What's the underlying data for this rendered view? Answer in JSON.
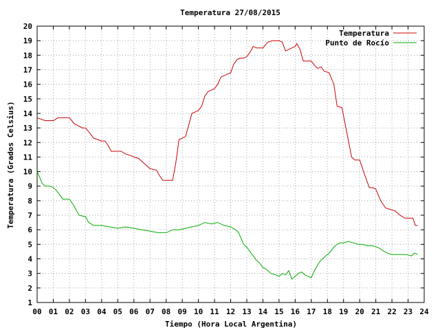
{
  "chart_data": {
    "type": "line",
    "title": "Temperatura 27/08/2015",
    "xlabel": "Tiempo (Hora Local Argentina)",
    "ylabel": "Temperatura (Grados Celsius)",
    "xlim": [
      0,
      24
    ],
    "ylim": [
      1,
      20
    ],
    "x_ticks": [
      "00",
      "01",
      "02",
      "03",
      "04",
      "05",
      "06",
      "07",
      "08",
      "09",
      "10",
      "11",
      "12",
      "13",
      "14",
      "15",
      "16",
      "17",
      "18",
      "19",
      "20",
      "21",
      "22",
      "23",
      "24"
    ],
    "y_ticks": [
      "1",
      "2",
      "3",
      "4",
      "5",
      "6",
      "7",
      "8",
      "9",
      "10",
      "11",
      "12",
      "13",
      "14",
      "15",
      "16",
      "17",
      "18",
      "19",
      "20"
    ],
    "grid": true,
    "legend_position": "top-right",
    "series": [
      {
        "name": "Temperatura",
        "color": "#cc0000",
        "points": [
          [
            0.0,
            13.7
          ],
          [
            0.5,
            13.5
          ],
          [
            1.0,
            13.5
          ],
          [
            1.3,
            13.7
          ],
          [
            1.5,
            13.7
          ],
          [
            2.0,
            13.7
          ],
          [
            2.3,
            13.3
          ],
          [
            2.8,
            13.0
          ],
          [
            3.0,
            13.0
          ],
          [
            3.3,
            12.6
          ],
          [
            3.5,
            12.3
          ],
          [
            4.0,
            12.1
          ],
          [
            4.2,
            12.1
          ],
          [
            4.4,
            11.8
          ],
          [
            4.6,
            11.4
          ],
          [
            5.0,
            11.4
          ],
          [
            5.2,
            11.4
          ],
          [
            5.5,
            11.2
          ],
          [
            5.8,
            11.1
          ],
          [
            6.0,
            11.0
          ],
          [
            6.3,
            10.9
          ],
          [
            6.6,
            10.6
          ],
          [
            6.8,
            10.4
          ],
          [
            7.0,
            10.2
          ],
          [
            7.4,
            10.1
          ],
          [
            7.6,
            9.7
          ],
          [
            7.8,
            9.4
          ],
          [
            8.0,
            9.4
          ],
          [
            8.4,
            9.4
          ],
          [
            8.6,
            10.6
          ],
          [
            8.8,
            12.2
          ],
          [
            9.0,
            12.3
          ],
          [
            9.2,
            12.4
          ],
          [
            9.4,
            13.2
          ],
          [
            9.6,
            14.0
          ],
          [
            9.8,
            14.1
          ],
          [
            10.0,
            14.2
          ],
          [
            10.2,
            14.5
          ],
          [
            10.4,
            15.2
          ],
          [
            10.6,
            15.5
          ],
          [
            10.8,
            15.6
          ],
          [
            11.0,
            15.7
          ],
          [
            11.2,
            16.0
          ],
          [
            11.4,
            16.5
          ],
          [
            11.6,
            16.6
          ],
          [
            11.8,
            16.7
          ],
          [
            12.0,
            16.8
          ],
          [
            12.2,
            17.4
          ],
          [
            12.4,
            17.7
          ],
          [
            12.6,
            17.8
          ],
          [
            12.8,
            17.8
          ],
          [
            13.0,
            17.9
          ],
          [
            13.2,
            18.2
          ],
          [
            13.4,
            18.6
          ],
          [
            13.6,
            18.5
          ],
          [
            14.0,
            18.5
          ],
          [
            14.3,
            18.9
          ],
          [
            14.6,
            19.0
          ],
          [
            15.0,
            19.0
          ],
          [
            15.2,
            18.9
          ],
          [
            15.4,
            18.3
          ],
          [
            15.6,
            18.4
          ],
          [
            15.8,
            18.5
          ],
          [
            16.0,
            18.6
          ],
          [
            16.1,
            18.8
          ],
          [
            16.3,
            18.4
          ],
          [
            16.5,
            17.6
          ],
          [
            17.0,
            17.6
          ],
          [
            17.2,
            17.3
          ],
          [
            17.4,
            17.1
          ],
          [
            17.6,
            17.2
          ],
          [
            17.8,
            16.9
          ],
          [
            18.1,
            16.8
          ],
          [
            18.4,
            16.0
          ],
          [
            18.6,
            14.5
          ],
          [
            18.9,
            14.4
          ],
          [
            19.2,
            12.7
          ],
          [
            19.5,
            11.0
          ],
          [
            19.7,
            10.8
          ],
          [
            20.0,
            10.8
          ],
          [
            20.3,
            9.8
          ],
          [
            20.6,
            8.9
          ],
          [
            20.8,
            8.9
          ],
          [
            21.0,
            8.8
          ],
          [
            21.3,
            8.0
          ],
          [
            21.6,
            7.5
          ],
          [
            21.9,
            7.4
          ],
          [
            22.2,
            7.3
          ],
          [
            22.5,
            7.0
          ],
          [
            22.8,
            6.8
          ],
          [
            23.1,
            6.8
          ],
          [
            23.3,
            6.8
          ],
          [
            23.45,
            6.3
          ],
          [
            23.6,
            6.3
          ]
        ]
      },
      {
        "name": "Punto de Rocío",
        "color": "#00aa00",
        "points": [
          [
            0.0,
            10.0
          ],
          [
            0.2,
            9.5
          ],
          [
            0.3,
            9.2
          ],
          [
            0.5,
            9.0
          ],
          [
            0.8,
            9.0
          ],
          [
            1.0,
            8.9
          ],
          [
            1.2,
            8.7
          ],
          [
            1.4,
            8.4
          ],
          [
            1.6,
            8.1
          ],
          [
            2.0,
            8.1
          ],
          [
            2.2,
            7.8
          ],
          [
            2.4,
            7.4
          ],
          [
            2.6,
            7.0
          ],
          [
            3.0,
            6.9
          ],
          [
            3.2,
            6.5
          ],
          [
            3.5,
            6.3
          ],
          [
            4.0,
            6.3
          ],
          [
            4.5,
            6.2
          ],
          [
            5.0,
            6.1
          ],
          [
            5.5,
            6.2
          ],
          [
            6.0,
            6.1
          ],
          [
            6.5,
            6.0
          ],
          [
            7.0,
            5.9
          ],
          [
            7.5,
            5.8
          ],
          [
            8.0,
            5.8
          ],
          [
            8.4,
            6.0
          ],
          [
            8.8,
            6.0
          ],
          [
            9.2,
            6.1
          ],
          [
            9.6,
            6.2
          ],
          [
            10.0,
            6.3
          ],
          [
            10.4,
            6.5
          ],
          [
            10.8,
            6.4
          ],
          [
            11.2,
            6.5
          ],
          [
            11.6,
            6.3
          ],
          [
            12.0,
            6.2
          ],
          [
            12.3,
            6.0
          ],
          [
            12.5,
            5.8
          ],
          [
            12.8,
            5.0
          ],
          [
            13.0,
            4.8
          ],
          [
            13.2,
            4.5
          ],
          [
            13.4,
            4.2
          ],
          [
            13.6,
            3.9
          ],
          [
            13.8,
            3.7
          ],
          [
            14.0,
            3.4
          ],
          [
            14.2,
            3.3
          ],
          [
            14.5,
            3.0
          ],
          [
            14.8,
            2.9
          ],
          [
            15.0,
            2.8
          ],
          [
            15.2,
            3.0
          ],
          [
            15.4,
            2.9
          ],
          [
            15.6,
            3.2
          ],
          [
            15.8,
            2.6
          ],
          [
            16.0,
            2.8
          ],
          [
            16.2,
            3.0
          ],
          [
            16.4,
            3.1
          ],
          [
            16.6,
            2.9
          ],
          [
            16.8,
            2.8
          ],
          [
            17.0,
            2.7
          ],
          [
            17.2,
            3.2
          ],
          [
            17.4,
            3.6
          ],
          [
            17.6,
            3.9
          ],
          [
            17.8,
            4.1
          ],
          [
            18.0,
            4.3
          ],
          [
            18.2,
            4.5
          ],
          [
            18.4,
            4.8
          ],
          [
            18.6,
            5.0
          ],
          [
            18.8,
            5.1
          ],
          [
            19.0,
            5.1
          ],
          [
            19.3,
            5.2
          ],
          [
            19.6,
            5.1
          ],
          [
            19.9,
            5.0
          ],
          [
            20.2,
            5.0
          ],
          [
            20.5,
            4.9
          ],
          [
            20.8,
            4.9
          ],
          [
            21.1,
            4.8
          ],
          [
            21.4,
            4.6
          ],
          [
            21.7,
            4.4
          ],
          [
            22.0,
            4.3
          ],
          [
            22.3,
            4.3
          ],
          [
            22.6,
            4.3
          ],
          [
            22.9,
            4.3
          ],
          [
            23.2,
            4.2
          ],
          [
            23.4,
            4.4
          ],
          [
            23.6,
            4.3
          ]
        ]
      }
    ]
  }
}
